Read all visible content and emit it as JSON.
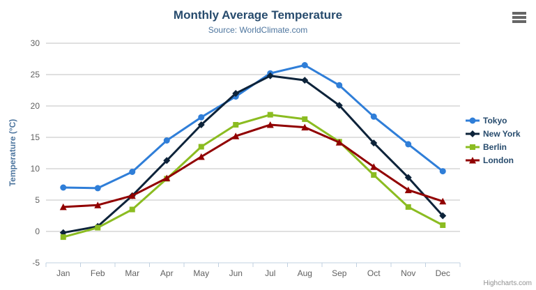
{
  "header": {
    "title": "Monthly Average Temperature",
    "subtitle": "Source: WorldClimate.com"
  },
  "context_menu": {
    "icon": "hamburger-menu-icon"
  },
  "credit": {
    "label": "Highcharts.com"
  },
  "colors": {
    "background": "#ffffff",
    "title": "#274b6d",
    "subtitle": "#4d759e",
    "axis_title": "#4d759e",
    "axis_labels": "#606060",
    "gridline": "#c0c0c0",
    "axis_line": "#c0d0e0",
    "legend_text": "#274b6d",
    "credit": "#909090"
  },
  "chart_data": {
    "type": "line",
    "title": "Monthly Average Temperature",
    "subtitle": "Source: WorldClimate.com",
    "xlabel": "",
    "ylabel": "Temperature (°C)",
    "ylim": [
      -5,
      30
    ],
    "ytick_step": 5,
    "grid": true,
    "legend_position": "right",
    "categories": [
      "Jan",
      "Feb",
      "Mar",
      "Apr",
      "May",
      "Jun",
      "Jul",
      "Aug",
      "Sep",
      "Oct",
      "Nov",
      "Dec"
    ],
    "series": [
      {
        "name": "Tokyo",
        "color": "#2f7ed8",
        "marker": "circle",
        "values": [
          7.0,
          6.9,
          9.5,
          14.5,
          18.2,
          21.5,
          25.2,
          26.5,
          23.3,
          18.3,
          13.9,
          9.6
        ]
      },
      {
        "name": "New York",
        "color": "#0d233a",
        "marker": "diamond",
        "values": [
          -0.2,
          0.8,
          5.7,
          11.3,
          17.0,
          22.0,
          24.8,
          24.1,
          20.1,
          14.1,
          8.6,
          2.5
        ]
      },
      {
        "name": "Berlin",
        "color": "#8bbc21",
        "marker": "square",
        "values": [
          -0.9,
          0.6,
          3.5,
          8.4,
          13.5,
          17.0,
          18.6,
          17.9,
          14.3,
          9.0,
          3.9,
          1.0
        ]
      },
      {
        "name": "London",
        "color": "#910000",
        "marker": "triangle",
        "values": [
          3.9,
          4.2,
          5.7,
          8.5,
          11.9,
          15.2,
          17.0,
          16.6,
          14.2,
          10.3,
          6.6,
          4.8
        ]
      }
    ]
  }
}
